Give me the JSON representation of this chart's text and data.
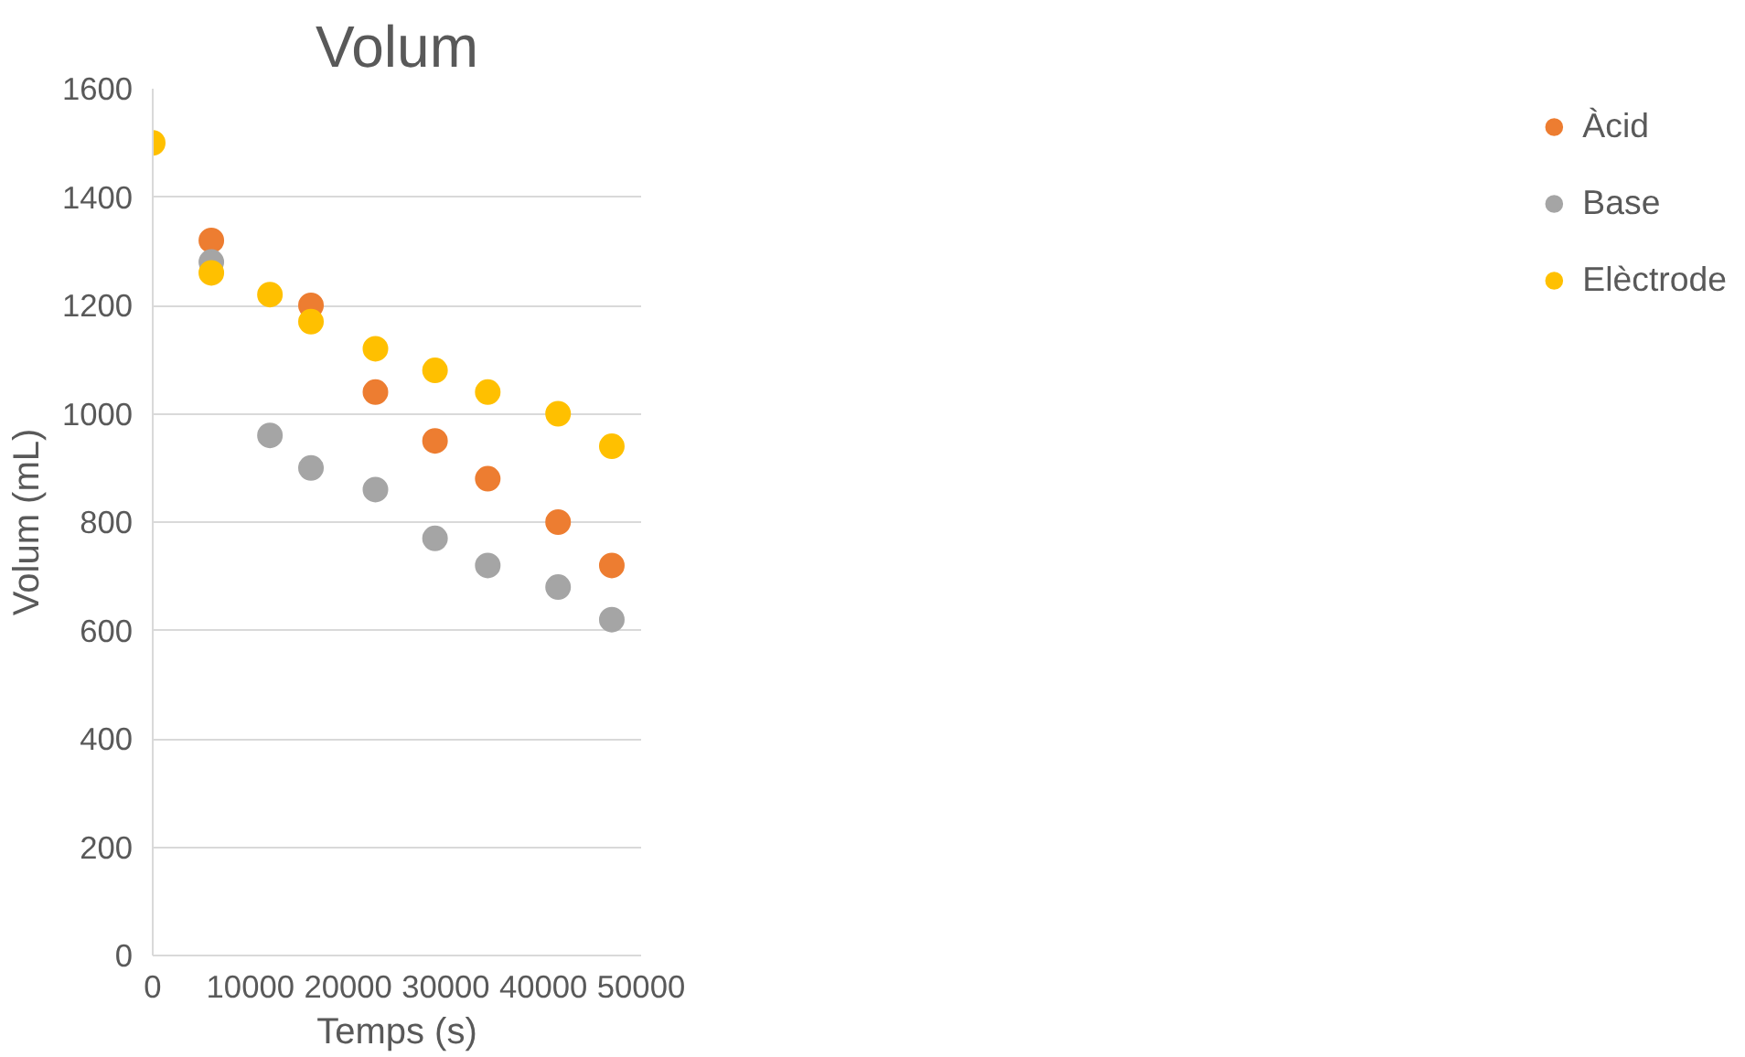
{
  "chart_data": {
    "type": "scatter",
    "title": "Volum",
    "xlabel": "Temps (s)",
    "ylabel": "Volum (mL)",
    "x": [
      0,
      6000,
      12000,
      16200,
      22800,
      28900,
      34300,
      41500,
      47000
    ],
    "series": [
      {
        "name": "Àcid",
        "color": "#ed7d31",
        "values": [
          null,
          1320,
          null,
          1200,
          1040,
          950,
          880,
          800,
          720
        ]
      },
      {
        "name": "Base",
        "color": "#a5a5a5",
        "values": [
          null,
          1280,
          960,
          900,
          860,
          770,
          720,
          680,
          620
        ]
      },
      {
        "name": "Elèctrode",
        "color": "#ffc000",
        "values": [
          1500,
          1260,
          1220,
          1170,
          1120,
          1080,
          1040,
          1000,
          940
        ]
      }
    ],
    "xlim": [
      0,
      50000
    ],
    "ylim": [
      0,
      1600
    ],
    "xticks": [
      0,
      10000,
      20000,
      30000,
      40000,
      50000
    ],
    "yticks": [
      0,
      200,
      400,
      600,
      800,
      1000,
      1200,
      1400,
      1600
    ],
    "grid": "y",
    "legend": "right",
    "marker": "circle"
  }
}
